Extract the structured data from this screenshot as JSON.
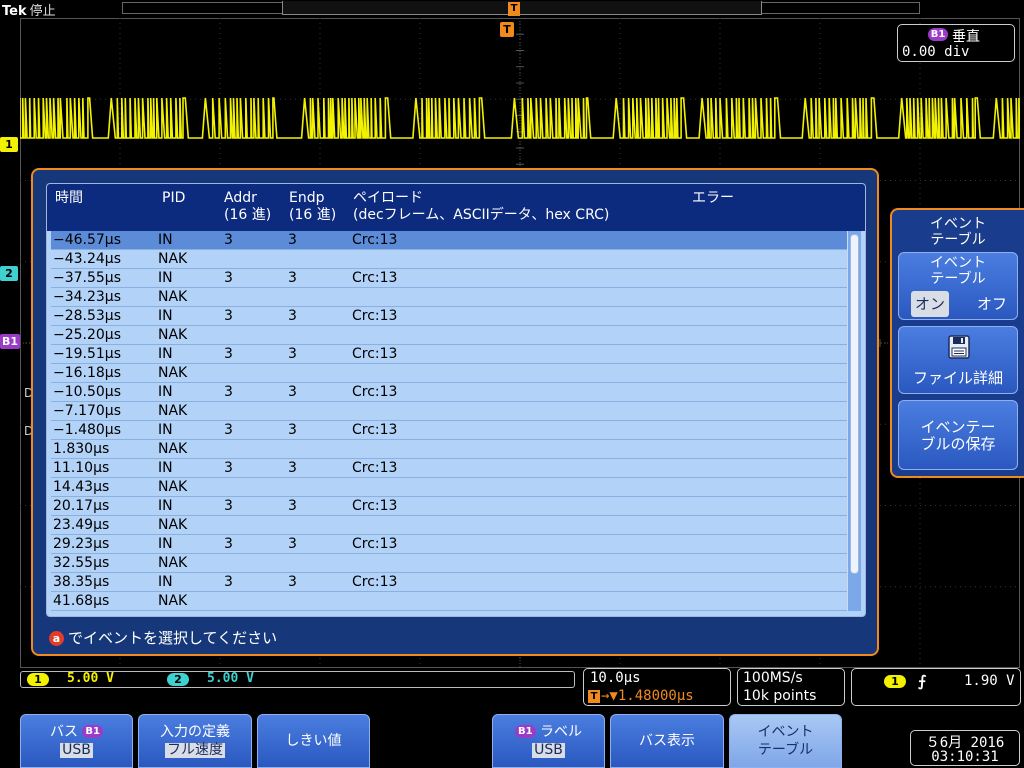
{
  "top": {
    "brand": "Tek",
    "state": "停止",
    "trigger_glyph": "T"
  },
  "channels": {
    "ch1_marker": "1",
    "ch2_marker": "2",
    "b1_marker": "B1",
    "d_marker": "D",
    "ch1_color": "#f2f200",
    "ch2_color": "#3fd0d0",
    "bus_color": "#9b3cc8"
  },
  "vertical_readout": {
    "badge": "B1",
    "label": "垂直",
    "value": "0.00 div"
  },
  "event_table": {
    "columns": {
      "time": "時間",
      "pid": "PID",
      "addr": "Addr",
      "addr_unit": "(16 進)",
      "endp": "Endp",
      "endp_unit": "(16 進)",
      "payload": "ペイロード",
      "payload_unit": "(decフレーム、ASCIIデータ、hex CRC)",
      "error": "エラー"
    },
    "rows": [
      {
        "time": "−46.57µs",
        "pid": "IN",
        "addr": "3",
        "endp": "3",
        "payload": "Crc:13",
        "selected": true
      },
      {
        "time": "−43.24µs",
        "pid": "NAK",
        "addr": "",
        "endp": "",
        "payload": ""
      },
      {
        "time": "−37.55µs",
        "pid": "IN",
        "addr": "3",
        "endp": "3",
        "payload": "Crc:13"
      },
      {
        "time": "−34.23µs",
        "pid": "NAK",
        "addr": "",
        "endp": "",
        "payload": ""
      },
      {
        "time": "−28.53µs",
        "pid": "IN",
        "addr": "3",
        "endp": "3",
        "payload": "Crc:13"
      },
      {
        "time": "−25.20µs",
        "pid": "NAK",
        "addr": "",
        "endp": "",
        "payload": ""
      },
      {
        "time": "−19.51µs",
        "pid": "IN",
        "addr": "3",
        "endp": "3",
        "payload": "Crc:13"
      },
      {
        "time": "−16.18µs",
        "pid": "NAK",
        "addr": "",
        "endp": "",
        "payload": ""
      },
      {
        "time": "−10.50µs",
        "pid": "IN",
        "addr": "3",
        "endp": "3",
        "payload": "Crc:13"
      },
      {
        "time": "−7.170µs",
        "pid": "NAK",
        "addr": "",
        "endp": "",
        "payload": ""
      },
      {
        "time": "−1.480µs",
        "pid": "IN",
        "addr": "3",
        "endp": "3",
        "payload": "Crc:13"
      },
      {
        "time": "1.830µs",
        "pid": "NAK",
        "addr": "",
        "endp": "",
        "payload": ""
      },
      {
        "time": "11.10µs",
        "pid": "IN",
        "addr": "3",
        "endp": "3",
        "payload": "Crc:13"
      },
      {
        "time": "14.43µs",
        "pid": "NAK",
        "addr": "",
        "endp": "",
        "payload": ""
      },
      {
        "time": "20.17µs",
        "pid": "IN",
        "addr": "3",
        "endp": "3",
        "payload": "Crc:13"
      },
      {
        "time": "23.49µs",
        "pid": "NAK",
        "addr": "",
        "endp": "",
        "payload": ""
      },
      {
        "time": "29.23µs",
        "pid": "IN",
        "addr": "3",
        "endp": "3",
        "payload": "Crc:13"
      },
      {
        "time": "32.55µs",
        "pid": "NAK",
        "addr": "",
        "endp": "",
        "payload": ""
      },
      {
        "time": "38.35µs",
        "pid": "IN",
        "addr": "3",
        "endp": "3",
        "payload": "Crc:13"
      },
      {
        "time": "41.68µs",
        "pid": "NAK",
        "addr": "",
        "endp": "",
        "payload": ""
      }
    ],
    "hint_icon": "a",
    "hint": "でイベントを選択してください"
  },
  "side_menu": {
    "title_1": "イベント",
    "title_2": "テーブル",
    "event_table_1": "イベント",
    "event_table_2": "テーブル",
    "on": "オン",
    "off": "オフ",
    "file_detail": "ファイル詳細",
    "save_1": "イベンテー",
    "save_2": "ブルの保存"
  },
  "status": {
    "ch1_badge": "1",
    "ch1_scale": "5.00 V",
    "ch2_badge": "2",
    "ch2_scale": "5.00 V",
    "horizontal_scale": "10.0µs",
    "trigger_delay_glyph": "T",
    "trigger_delay": "→▼1.48000µs",
    "sample_rate": "100MS/s",
    "record_length": "10k points",
    "trigger_source": "1",
    "trigger_slope": "⨍",
    "trigger_level": "1.90 V"
  },
  "bottom_menu": {
    "bus_label": "バス",
    "bus_badge": "B1",
    "bus_value": "USB",
    "input_def": "入力の定義",
    "input_def_value": "フル速度",
    "threshold": "しきい値",
    "label_badge": "B1",
    "label": "ラベル",
    "label_value": "USB",
    "bus_display": "バス表示",
    "event_table_1": "イベント",
    "event_table_2": "テーブル"
  },
  "datetime": {
    "date": "５6月  2016",
    "time": "03:10:31"
  }
}
